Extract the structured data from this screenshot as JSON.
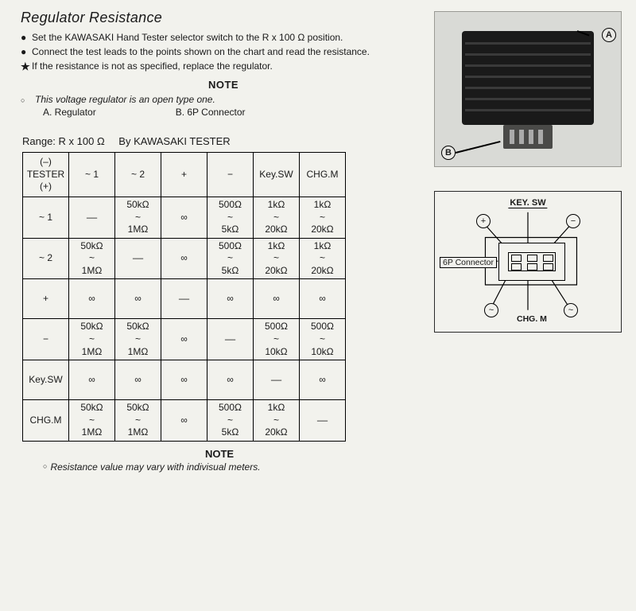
{
  "title": "Regulator Resistance",
  "instructions": {
    "b1": "Set the KAWASAKI Hand Tester selector switch to the R x 100 Ω position.",
    "b2": "Connect the test leads to the points shown on the chart and read the resistance.",
    "star": "If the resistance is not as specified, replace the regulator."
  },
  "note_heading": "NOTE",
  "note_line": "This voltage regulator is an open type one.",
  "legend": {
    "a": "A. Regulator",
    "b": "B. 6P Connector"
  },
  "range_line": {
    "pre": "Range: R x 100 Ω",
    "post": "By KAWASAKI TESTER"
  },
  "photo": {
    "label_a": "A",
    "label_b": "B"
  },
  "table": {
    "corner_top": "(–)",
    "corner_mid": "TESTER",
    "corner_bot": "(+)",
    "cols": [
      "~ 1",
      "~ 2",
      "+",
      "−",
      "Key.SW",
      "CHG.M"
    ],
    "rows": [
      {
        "h": "~ 1",
        "c": [
          "––",
          "50kΩ\n~\n1MΩ",
          "∞",
          "500Ω\n~\n5kΩ",
          "1kΩ\n~\n20kΩ",
          "1kΩ\n~\n20kΩ"
        ]
      },
      {
        "h": "~ 2",
        "c": [
          "50kΩ\n~\n1MΩ",
          "––",
          "∞",
          "500Ω\n~\n5kΩ",
          "1kΩ\n~\n20kΩ",
          "1kΩ\n~\n20kΩ"
        ]
      },
      {
        "h": "+",
        "c": [
          "∞",
          "∞",
          "––",
          "∞",
          "∞",
          "∞"
        ]
      },
      {
        "h": "−",
        "c": [
          "50kΩ\n~\n1MΩ",
          "50kΩ\n~\n1MΩ",
          "∞",
          "––",
          "500Ω\n~\n10kΩ",
          "500Ω\n~\n10kΩ"
        ]
      },
      {
        "h": "Key.SW",
        "c": [
          "∞",
          "∞",
          "∞",
          "∞",
          "––",
          "∞"
        ]
      },
      {
        "h": "CHG.M",
        "c": [
          "50kΩ\n~\n1MΩ",
          "50kΩ\n~\n1MΩ",
          "∞",
          "500Ω\n~\n5kΩ",
          "1kΩ\n~\n20kΩ",
          "––"
        ]
      }
    ]
  },
  "diagram": {
    "keysw": "KEY. SW",
    "connector_label": "6P Connector",
    "chg_label": "CHG. M",
    "plus": "+",
    "minus": "−",
    "tilde": "~"
  },
  "bottom_note_heading": "NOTE",
  "bottom_note": "Resistance value may vary with indivisual meters."
}
